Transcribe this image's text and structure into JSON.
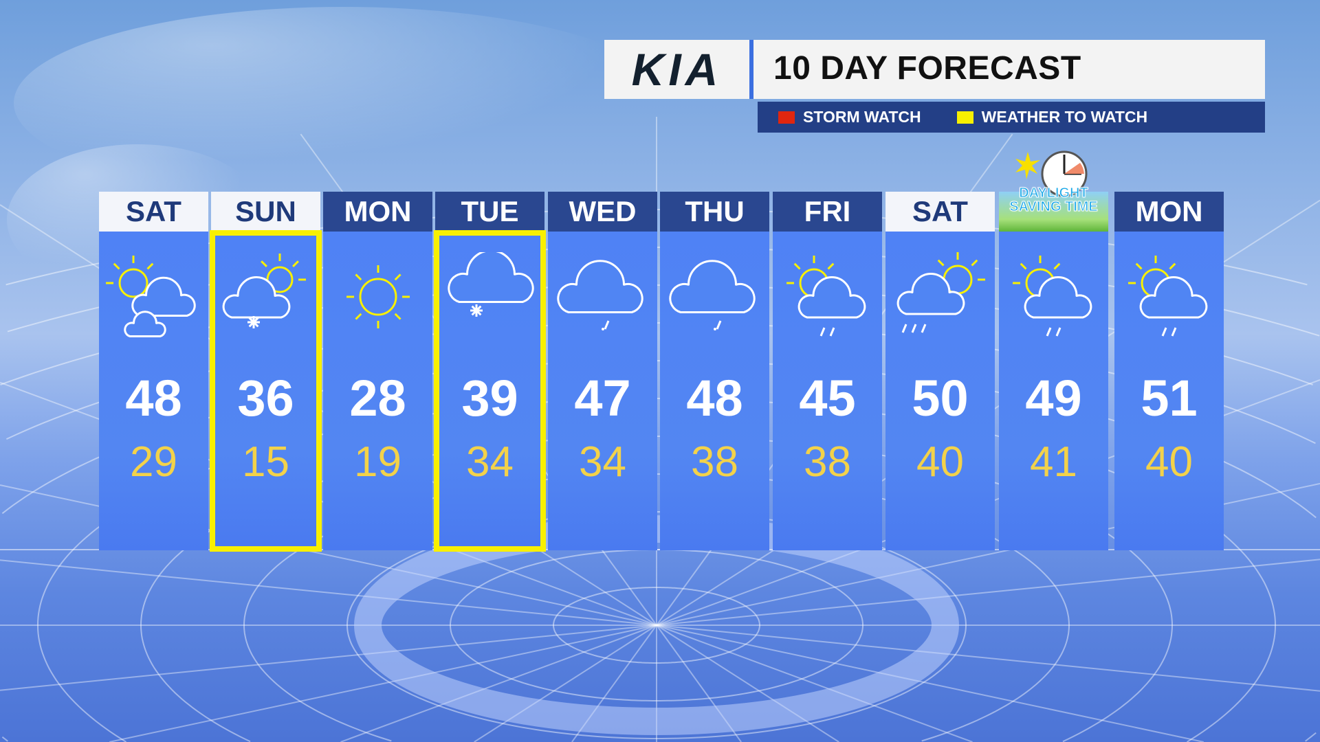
{
  "header": {
    "brand": "KIA",
    "title": "10 DAY FORECAST"
  },
  "legend": [
    {
      "label": "STORM WATCH",
      "color": "#e0260f"
    },
    {
      "label": "WEATHER TO WATCH",
      "color": "#f8f000"
    }
  ],
  "colors": {
    "header_dark": "#2a4790",
    "column": "#5085f3",
    "high": "#ffffff",
    "low": "#f3d24a",
    "highlight": "#f8f000"
  },
  "days": [
    {
      "day": "SAT",
      "style": "light",
      "icon": "partly-cloudy",
      "high": "48",
      "low": "29",
      "highlight": false
    },
    {
      "day": "SUN",
      "style": "light",
      "icon": "partly-cloudy-snow",
      "high": "36",
      "low": "15",
      "highlight": true
    },
    {
      "day": "MON",
      "style": "dark",
      "icon": "sunny",
      "high": "28",
      "low": "19",
      "highlight": false
    },
    {
      "day": "TUE",
      "style": "dark",
      "icon": "cloudy-snow",
      "high": "39",
      "low": "34",
      "highlight": true
    },
    {
      "day": "WED",
      "style": "dark",
      "icon": "cloudy-drizzle",
      "high": "47",
      "low": "34",
      "highlight": false
    },
    {
      "day": "THU",
      "style": "dark",
      "icon": "cloudy-drizzle",
      "high": "48",
      "low": "38",
      "highlight": false
    },
    {
      "day": "FRI",
      "style": "dark",
      "icon": "partly-cloudy-rain",
      "high": "45",
      "low": "38",
      "highlight": false
    },
    {
      "day": "SAT",
      "style": "light",
      "icon": "partly-cloudy-showers",
      "high": "50",
      "low": "40",
      "highlight": false
    },
    {
      "day": "DAYLIGHT SAVING TIME",
      "style": "dst",
      "icon": "partly-cloudy-rain",
      "high": "49",
      "low": "41",
      "highlight": false
    },
    {
      "day": "MON",
      "style": "dark",
      "icon": "partly-cloudy-rain",
      "high": "51",
      "low": "40",
      "highlight": false
    }
  ]
}
